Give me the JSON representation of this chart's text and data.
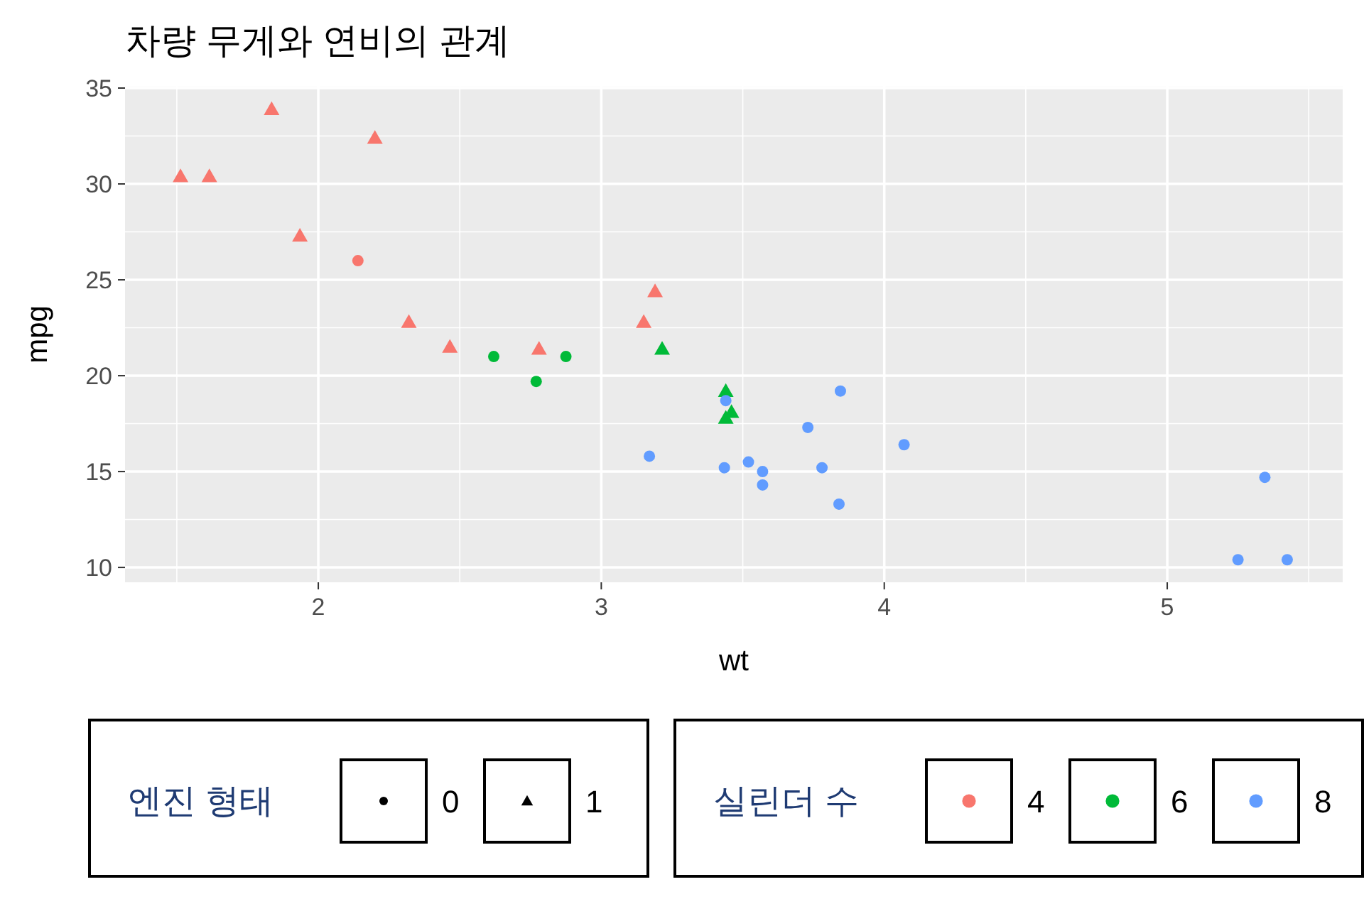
{
  "chart_data": {
    "type": "scatter",
    "title": "차량 무게와 연비의 관계",
    "xlabel": "wt",
    "ylabel": "mpg",
    "xlim": [
      1.317,
      5.62
    ],
    "ylim": [
      9.225,
      35.075
    ],
    "xticks": [
      2,
      3,
      4,
      5
    ],
    "yticks": [
      10,
      15,
      20,
      25,
      30,
      35
    ],
    "grid": true,
    "legend": "bottom",
    "legend_title": "실린더 수",
    "annotations": [
      "엔진 형태",
      "0",
      "1"
    ],
    "series": [
      {
        "name": "4",
        "color": "#f8766d",
        "marker": "circle",
        "x": [
          2.14
        ],
        "values": [
          26.0
        ]
      },
      {
        "color": "#f8766d",
        "marker": "triangle",
        "x": [
          2.32,
          3.19,
          3.15,
          2.2,
          1.615,
          1.835,
          2.465,
          1.935,
          1.513,
          2.78
        ],
        "values": [
          22.8,
          24.4,
          22.8,
          32.4,
          30.4,
          33.9,
          21.5,
          27.3,
          30.4,
          21.4
        ]
      },
      {
        "name": "6",
        "color": "#00ba38",
        "marker": "circle",
        "x": [
          2.62,
          2.875,
          2.77
        ],
        "values": [
          21.0,
          21.0,
          19.7
        ]
      },
      {
        "color": "#00ba38",
        "marker": "triangle",
        "x": [
          3.215,
          3.46,
          3.44,
          3.44
        ],
        "values": [
          21.4,
          18.1,
          19.2,
          17.8
        ]
      },
      {
        "name": "8",
        "color": "#619cff",
        "marker": "circle",
        "x": [
          3.44,
          3.57,
          4.07,
          3.73,
          3.78,
          5.25,
          5.424,
          5.345,
          3.52,
          3.435,
          3.84,
          3.845,
          3.17,
          3.57
        ],
        "values": [
          18.7,
          14.3,
          16.4,
          17.3,
          15.2,
          10.4,
          10.4,
          14.7,
          15.5,
          15.2,
          13.3,
          19.2,
          15.8,
          15.0
        ]
      }
    ]
  }
}
